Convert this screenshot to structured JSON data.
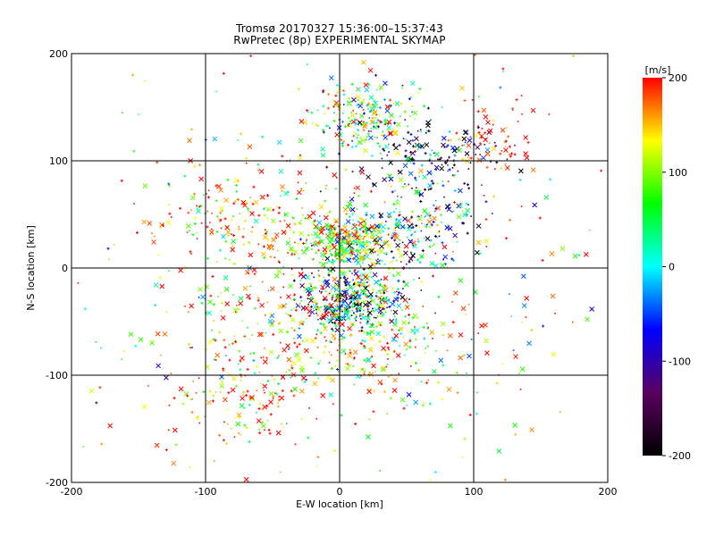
{
  "chart_data": {
    "type": "scatter",
    "title": "Tromsø 20170327 15:36:00–15:37:43",
    "subtitle": "RwPretec (8p) EXPERIMENTAL SKYMAP",
    "xlabel": "E-W location [km]",
    "ylabel": "N-S location [km]",
    "xlim": [
      -200,
      200
    ],
    "ylim": [
      -200,
      200
    ],
    "xticks": [
      -200,
      -100,
      0,
      100,
      200
    ],
    "yticks": [
      -200,
      -100,
      0,
      100,
      200
    ],
    "grid": true,
    "colorbar": {
      "label": "[m/s]",
      "min": -200,
      "max": 200,
      "ticks": [
        200,
        100,
        0,
        -100,
        -200
      ],
      "colors": [
        "#000000",
        "#5a0060",
        "#0000ff",
        "#00ffff",
        "#00ff00",
        "#ffff00",
        "#ff0000"
      ]
    },
    "markers": [
      "x",
      "+",
      "."
    ],
    "clusters": [
      {
        "x": 5,
        "y": 25,
        "sx": 18,
        "sy": 14,
        "n": 380,
        "v": 80,
        "vs": 90
      },
      {
        "x": 10,
        "y": -30,
        "sx": 20,
        "sy": 14,
        "n": 380,
        "v": -30,
        "vs": 120
      },
      {
        "x": 20,
        "y": 140,
        "sx": 22,
        "sy": 18,
        "n": 220,
        "v": 70,
        "vs": 90
      },
      {
        "x": 55,
        "y": 40,
        "sx": 22,
        "sy": 25,
        "n": 200,
        "v": -20,
        "vs": 130
      },
      {
        "x": 70,
        "y": 105,
        "sx": 28,
        "sy": 18,
        "n": 140,
        "v": -120,
        "vs": 90
      },
      {
        "x": -60,
        "y": 40,
        "sx": 35,
        "sy": 25,
        "n": 200,
        "v": 150,
        "vs": 70
      },
      {
        "x": -40,
        "y": -60,
        "sx": 40,
        "sy": 30,
        "n": 220,
        "v": 130,
        "vs": 90
      },
      {
        "x": 30,
        "y": -70,
        "sx": 35,
        "sy": 25,
        "n": 180,
        "v": 120,
        "vs": 90
      },
      {
        "x": -70,
        "y": -130,
        "sx": 25,
        "sy": 20,
        "n": 100,
        "v": 180,
        "vs": 60
      },
      {
        "x": 115,
        "y": 120,
        "sx": 14,
        "sy": 18,
        "n": 60,
        "v": 190,
        "vs": 30
      },
      {
        "x": 0,
        "y": 0,
        "sx": 110,
        "sy": 110,
        "n": 420,
        "v": 120,
        "vs": 110
      }
    ]
  }
}
